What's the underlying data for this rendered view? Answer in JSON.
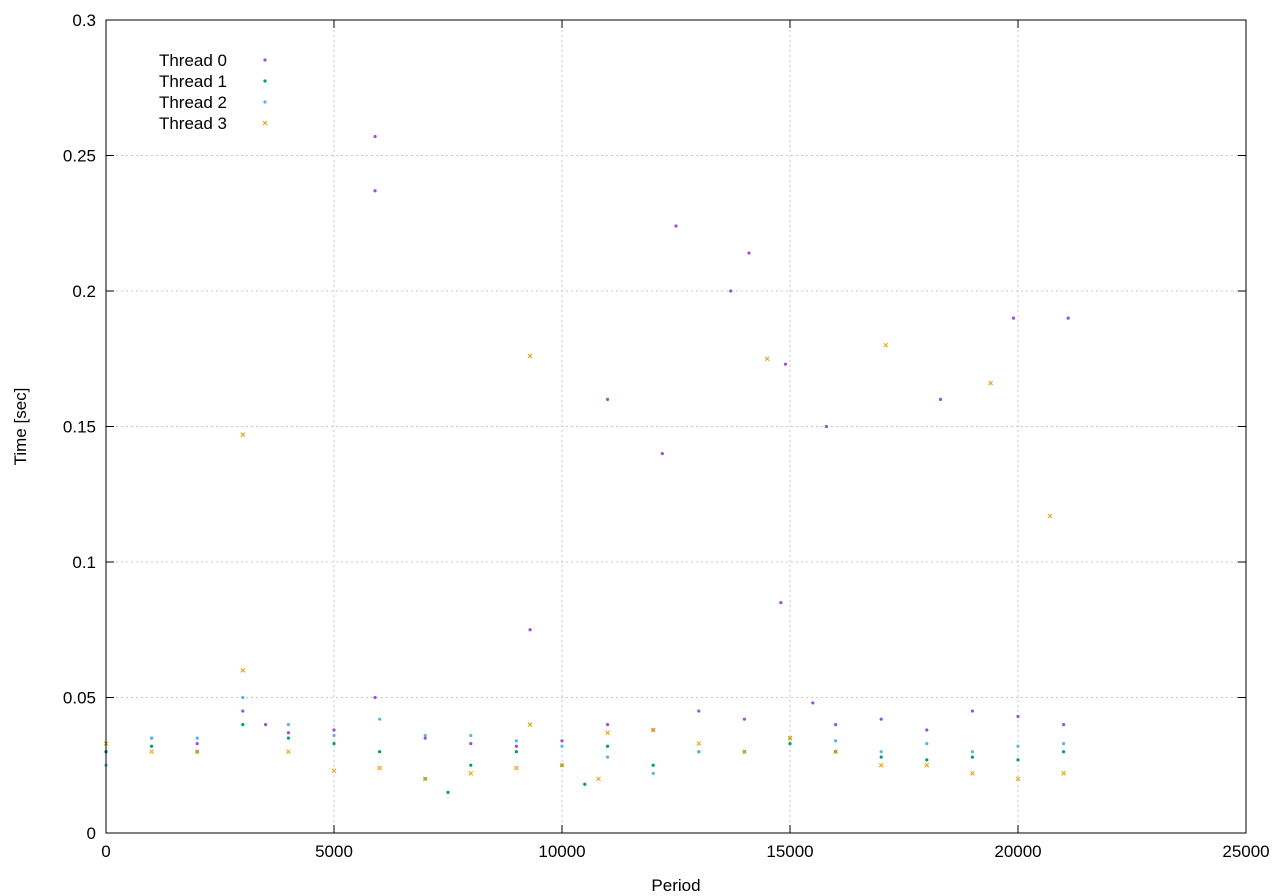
{
  "chart_data": {
    "type": "scatter",
    "title": "",
    "xlabel": "Period",
    "ylabel": "Time [sec]",
    "xlim": [
      0,
      25000
    ],
    "ylim": [
      0,
      0.3
    ],
    "x_ticks": [
      0,
      5000,
      10000,
      15000,
      20000,
      25000
    ],
    "x_tick_labels": [
      "0",
      "5000",
      "10000",
      "15000",
      "20000",
      "25000"
    ],
    "y_ticks": [
      0,
      0.05,
      0.1,
      0.15,
      0.2,
      0.25,
      0.3
    ],
    "y_tick_labels": [
      "0",
      "0.05",
      "0.1",
      "0.15",
      "0.2",
      "0.25",
      "0.3"
    ],
    "grid": true,
    "legend_position": "top-left",
    "series": [
      {
        "name": "Thread 0",
        "color": "#9b4fe0",
        "marker": "dot",
        "points": [
          [
            0,
            0.03
          ],
          [
            1000,
            0.035
          ],
          [
            2000,
            0.033
          ],
          [
            3000,
            0.045
          ],
          [
            3500,
            0.04
          ],
          [
            4000,
            0.037
          ],
          [
            5000,
            0.038
          ],
          [
            5900,
            0.05
          ],
          [
            7000,
            0.035
          ],
          [
            8000,
            0.033
          ],
          [
            9000,
            0.032
          ],
          [
            9300,
            0.075
          ],
          [
            10000,
            0.034
          ],
          [
            11000,
            0.04
          ],
          [
            12000,
            0.038
          ],
          [
            13000,
            0.045
          ],
          [
            14000,
            0.042
          ],
          [
            14800,
            0.085
          ],
          [
            15500,
            0.048
          ],
          [
            16000,
            0.04
          ],
          [
            17000,
            0.042
          ],
          [
            18000,
            0.038
          ],
          [
            19000,
            0.045
          ],
          [
            20000,
            0.043
          ],
          [
            21000,
            0.04
          ],
          [
            5900,
            0.257
          ],
          [
            5900,
            0.237
          ],
          [
            12500,
            0.224
          ],
          [
            14100,
            0.214
          ],
          [
            13700,
            0.2
          ],
          [
            14900,
            0.173
          ],
          [
            11000,
            0.16
          ],
          [
            15800,
            0.15
          ],
          [
            18300,
            0.16
          ],
          [
            12200,
            0.14
          ],
          [
            19900,
            0.19
          ],
          [
            21100,
            0.19
          ]
        ]
      },
      {
        "name": "Thread 1",
        "color": "#009e73",
        "marker": "dot",
        "points": [
          [
            0,
            0.03
          ],
          [
            1000,
            0.032
          ],
          [
            2000,
            0.03
          ],
          [
            3000,
            0.04
          ],
          [
            4000,
            0.035
          ],
          [
            5000,
            0.033
          ],
          [
            6000,
            0.03
          ],
          [
            7000,
            0.02
          ],
          [
            7500,
            0.015
          ],
          [
            8000,
            0.025
          ],
          [
            9000,
            0.03
          ],
          [
            10000,
            0.025
          ],
          [
            10500,
            0.018
          ],
          [
            11000,
            0.032
          ],
          [
            12000,
            0.025
          ],
          [
            13000,
            0.03
          ],
          [
            14000,
            0.03
          ],
          [
            15000,
            0.033
          ],
          [
            16000,
            0.03
          ],
          [
            17000,
            0.028
          ],
          [
            18000,
            0.027
          ],
          [
            19000,
            0.028
          ],
          [
            20000,
            0.027
          ],
          [
            21000,
            0.03
          ]
        ]
      },
      {
        "name": "Thread 2",
        "color": "#56b4e9",
        "marker": "dot",
        "points": [
          [
            0,
            0.025
          ],
          [
            1000,
            0.035
          ],
          [
            2000,
            0.035
          ],
          [
            3000,
            0.05
          ],
          [
            4000,
            0.04
          ],
          [
            5000,
            0.036
          ],
          [
            6000,
            0.042
          ],
          [
            7000,
            0.036
          ],
          [
            8000,
            0.036
          ],
          [
            9000,
            0.034
          ],
          [
            10000,
            0.032
          ],
          [
            11000,
            0.028
          ],
          [
            12000,
            0.022
          ],
          [
            13000,
            0.03
          ],
          [
            14000,
            0.03
          ],
          [
            15000,
            0.035
          ],
          [
            16000,
            0.034
          ],
          [
            17000,
            0.03
          ],
          [
            18000,
            0.033
          ],
          [
            19000,
            0.03
          ],
          [
            20000,
            0.032
          ],
          [
            21000,
            0.033
          ]
        ]
      },
      {
        "name": "Thread 3",
        "color": "#e69f00",
        "marker": "x",
        "points": [
          [
            0,
            0.033
          ],
          [
            1000,
            0.03
          ],
          [
            2000,
            0.03
          ],
          [
            3000,
            0.06
          ],
          [
            4000,
            0.03
          ],
          [
            5000,
            0.023
          ],
          [
            6000,
            0.024
          ],
          [
            7000,
            0.02
          ],
          [
            8000,
            0.022
          ],
          [
            9000,
            0.024
          ],
          [
            9300,
            0.04
          ],
          [
            10000,
            0.025
          ],
          [
            10800,
            0.02
          ],
          [
            11000,
            0.037
          ],
          [
            12000,
            0.038
          ],
          [
            13000,
            0.033
          ],
          [
            14000,
            0.03
          ],
          [
            15000,
            0.035
          ],
          [
            16000,
            0.03
          ],
          [
            17000,
            0.025
          ],
          [
            18000,
            0.025
          ],
          [
            19000,
            0.022
          ],
          [
            20000,
            0.02
          ],
          [
            21000,
            0.022
          ],
          [
            3000,
            0.147
          ],
          [
            9300,
            0.176
          ],
          [
            14500,
            0.175
          ],
          [
            17100,
            0.18
          ],
          [
            19400,
            0.166
          ],
          [
            20700,
            0.117
          ]
        ]
      }
    ]
  }
}
